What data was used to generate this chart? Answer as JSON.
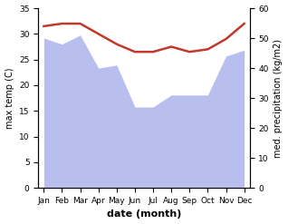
{
  "months": [
    "Jan",
    "Feb",
    "Mar",
    "Apr",
    "May",
    "Jun",
    "Jul",
    "Aug",
    "Sep",
    "Oct",
    "Nov",
    "Dec"
  ],
  "temperature": [
    31.5,
    32.0,
    32.0,
    30.0,
    28.0,
    26.5,
    26.5,
    27.5,
    26.5,
    27.0,
    29.0,
    32.0
  ],
  "precipitation": [
    50,
    48,
    51,
    40,
    41,
    27,
    27,
    31,
    31,
    31,
    44,
    46
  ],
  "temp_color": "#c0392b",
  "precip_color": "#b8bfee",
  "temp_ylim": [
    0,
    35
  ],
  "precip_ylim": [
    0,
    60
  ],
  "temp_yticks": [
    0,
    5,
    10,
    15,
    20,
    25,
    30,
    35
  ],
  "precip_yticks": [
    0,
    10,
    20,
    30,
    40,
    50,
    60
  ],
  "ylabel_left": "max temp (C)",
  "ylabel_right": "med. precipitation (kg/m2)",
  "xlabel": "date (month)",
  "fig_width": 3.18,
  "fig_height": 2.47,
  "dpi": 100
}
